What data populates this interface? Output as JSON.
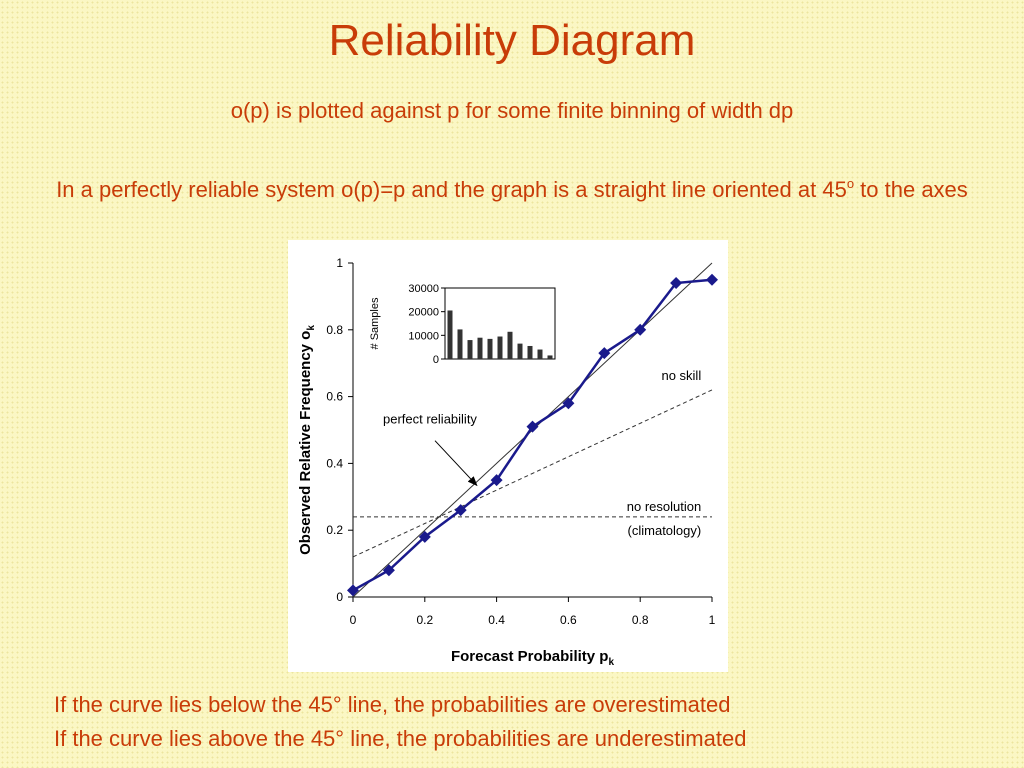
{
  "slide": {
    "title": "Reliability Diagram",
    "subtitle": "o(p) is plotted against p for some finite binning of width dp",
    "paragraph_main": "In a perfectly reliable system o(p)=p and the graph is a straight line oriented at 45",
    "paragraph_sup": "o",
    "paragraph_tail": " to the axes",
    "notes": [
      "If the curve lies below the 45° line, the probabilities are overestimated",
      "If the curve lies above the 45° line, the probabilities are underestimated"
    ],
    "text_color": "#c83c08",
    "background_color": "#fbf7c4"
  },
  "chart_data": [
    {
      "type": "line",
      "xlabel": "Forecast Probability p",
      "xlabel_sub": "k",
      "ylabel": "Observed Relative Frequency  o",
      "ylabel_sub": "k",
      "xlim": [
        0,
        1
      ],
      "ylim": [
        0,
        1
      ],
      "x_ticks": [
        "0",
        "0.2",
        "0.4",
        "0.6",
        "0.8",
        "1"
      ],
      "y_ticks": [
        "0",
        "0.2",
        "0.4",
        "0.6",
        "0.8",
        "1"
      ],
      "grid": false,
      "series": [
        {
          "x": [
            0,
            0.1,
            0.2,
            0.3,
            0.4,
            0.5,
            0.6,
            0.7,
            0.8,
            0.9,
            1.0
          ],
          "values": [
            0.02,
            0.08,
            0.18,
            0.26,
            0.35,
            0.51,
            0.58,
            0.73,
            0.8,
            0.94,
            0.95
          ],
          "color": "#1a1a8c",
          "marker": "diamond"
        }
      ],
      "reference_lines": [
        {
          "label": "perfect reliability",
          "from": [
            0,
            0
          ],
          "to": [
            1,
            1
          ],
          "style": "solid"
        },
        {
          "label": "no skill",
          "from": [
            0,
            0.12
          ],
          "to": [
            1,
            0.62
          ],
          "style": "dashed"
        },
        {
          "label": "no resolution",
          "label2": "(climatology)",
          "from": [
            0,
            0.24
          ],
          "to": [
            1,
            0.24
          ],
          "style": "dashed"
        }
      ]
    },
    {
      "type": "bar",
      "ylabel": "# Samples",
      "ylim": [
        0,
        30000
      ],
      "y_ticks": [
        "0",
        "10000",
        "20000",
        "30000"
      ],
      "values": [
        20500,
        12500,
        8000,
        9000,
        8500,
        9500,
        11500,
        6500,
        5500,
        4000,
        1500
      ]
    }
  ]
}
